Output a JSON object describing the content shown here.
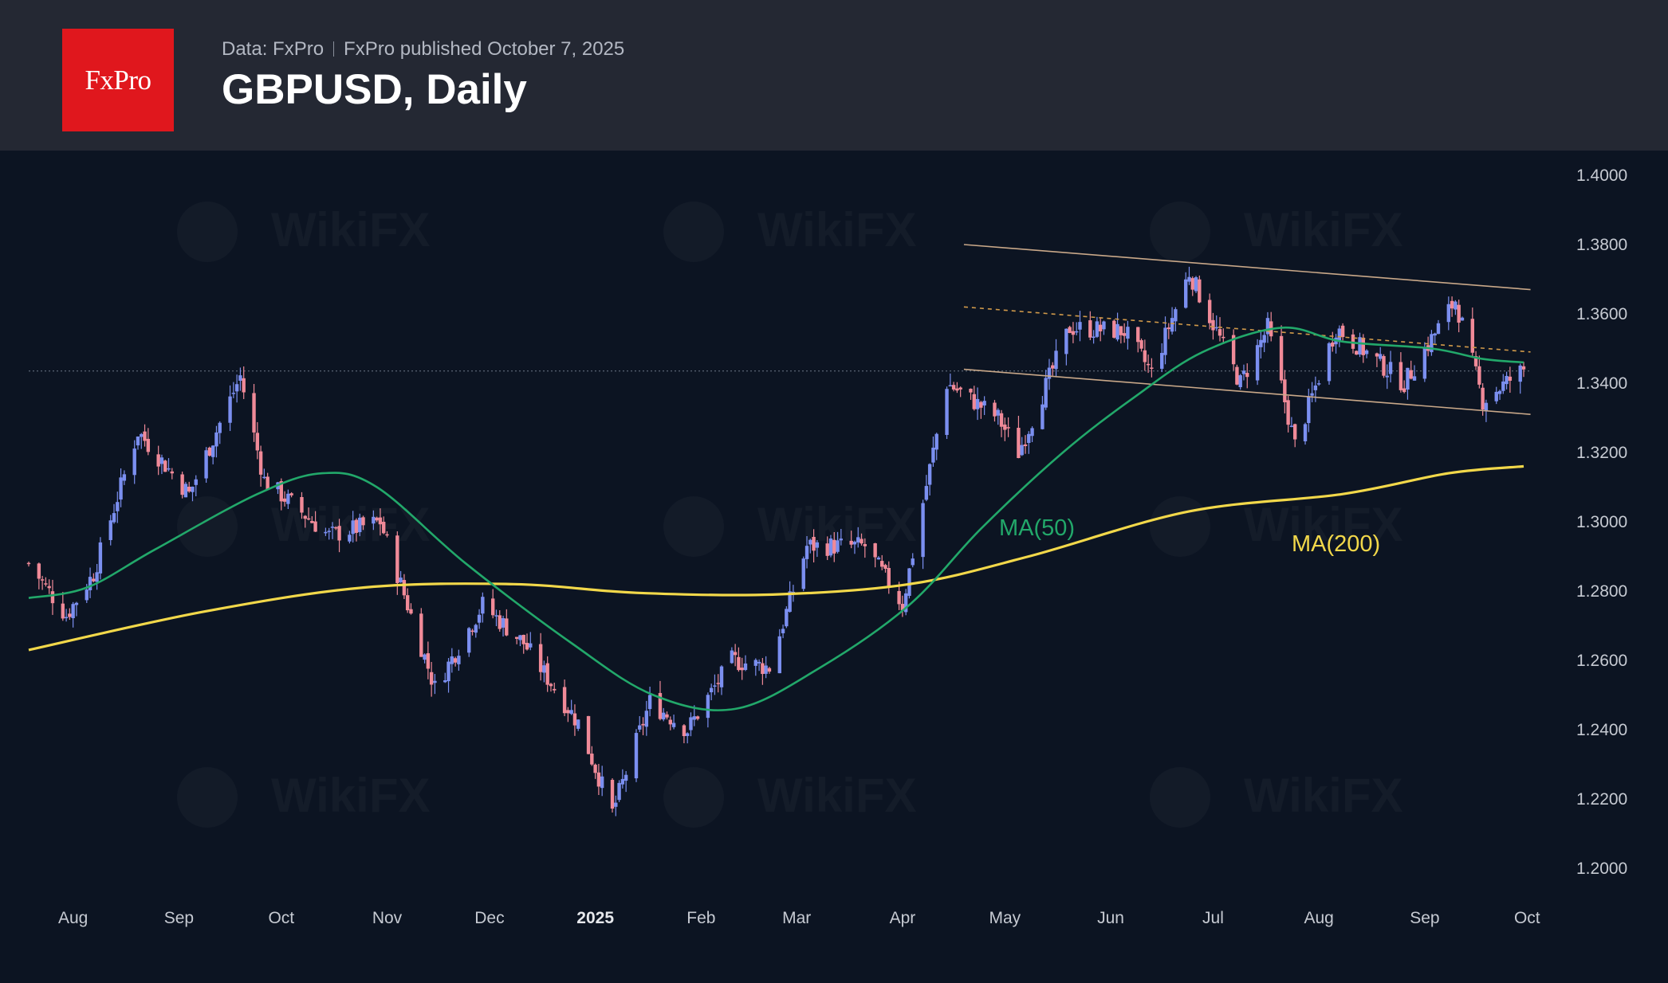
{
  "header": {
    "logo": "FxPro",
    "source": "Data: FxPro",
    "published": "FxPro published October 7, 2025",
    "title": "GBPUSD, Daily"
  },
  "chart_data": {
    "type": "candlestick",
    "instrument": "GBPUSD",
    "timeframe": "Daily",
    "x_tick_labels": [
      {
        "label": "Aug",
        "date": "2024-08-01"
      },
      {
        "label": "Sep",
        "date": "2024-09-01"
      },
      {
        "label": "Oct",
        "date": "2024-10-01"
      },
      {
        "label": "Nov",
        "date": "2024-11-01"
      },
      {
        "label": "Dec",
        "date": "2024-12-01"
      },
      {
        "label": "2025",
        "date": "2025-01-01"
      },
      {
        "label": "Feb",
        "date": "2025-02-01"
      },
      {
        "label": "Mar",
        "date": "2025-03-01"
      },
      {
        "label": "Apr",
        "date": "2025-04-01"
      },
      {
        "label": "May",
        "date": "2025-05-01"
      },
      {
        "label": "Jun",
        "date": "2025-06-01"
      },
      {
        "label": "Jul",
        "date": "2025-07-01"
      },
      {
        "label": "Aug",
        "date": "2025-08-01"
      },
      {
        "label": "Sep",
        "date": "2025-09-01"
      },
      {
        "label": "Oct",
        "date": "2025-10-01"
      }
    ],
    "y_tick_labels": [
      "1.4000",
      "1.3800",
      "1.3600",
      "1.3400",
      "1.3200",
      "1.3000",
      "1.2800",
      "1.2600",
      "1.2400",
      "1.2200",
      "1.2000"
    ],
    "ylim": [
      1.2,
      1.4
    ],
    "x_range": [
      "2024-07-26",
      "2025-10-07"
    ],
    "grid": false,
    "up_color": "#7b8ff0",
    "down_color": "#f08a98",
    "close_anchors": [
      {
        "date": "2024-07-26",
        "close": 1.288
      },
      {
        "date": "2024-08-06",
        "close": 1.273
      },
      {
        "date": "2024-08-14",
        "close": 1.285
      },
      {
        "date": "2024-08-27",
        "close": 1.326
      },
      {
        "date": "2024-09-11",
        "close": 1.308
      },
      {
        "date": "2024-09-26",
        "close": 1.342
      },
      {
        "date": "2024-10-03",
        "close": 1.312
      },
      {
        "date": "2024-10-22",
        "close": 1.296
      },
      {
        "date": "2024-11-06",
        "close": 1.3
      },
      {
        "date": "2024-11-22",
        "close": 1.252
      },
      {
        "date": "2024-12-06",
        "close": 1.276
      },
      {
        "date": "2024-12-18",
        "close": 1.265
      },
      {
        "date": "2025-01-03",
        "close": 1.242
      },
      {
        "date": "2025-01-13",
        "close": 1.216
      },
      {
        "date": "2025-01-24",
        "close": 1.248
      },
      {
        "date": "2025-02-04",
        "close": 1.24
      },
      {
        "date": "2025-02-17",
        "close": 1.26
      },
      {
        "date": "2025-02-28",
        "close": 1.258
      },
      {
        "date": "2025-03-11",
        "close": 1.293
      },
      {
        "date": "2025-03-28",
        "close": 1.293
      },
      {
        "date": "2025-04-08",
        "close": 1.276
      },
      {
        "date": "2025-04-21",
        "close": 1.34
      },
      {
        "date": "2025-05-06",
        "close": 1.33
      },
      {
        "date": "2025-05-12",
        "close": 1.32
      },
      {
        "date": "2025-05-27",
        "close": 1.356
      },
      {
        "date": "2025-06-12",
        "close": 1.355
      },
      {
        "date": "2025-06-20",
        "close": 1.343
      },
      {
        "date": "2025-07-01",
        "close": 1.372
      },
      {
        "date": "2025-07-16",
        "close": 1.34
      },
      {
        "date": "2025-07-24",
        "close": 1.356
      },
      {
        "date": "2025-08-01",
        "close": 1.322
      },
      {
        "date": "2025-08-13",
        "close": 1.356
      },
      {
        "date": "2025-09-02",
        "close": 1.34
      },
      {
        "date": "2025-09-17",
        "close": 1.364
      },
      {
        "date": "2025-09-25",
        "close": 1.335
      },
      {
        "date": "2025-10-07",
        "close": 1.344
      }
    ],
    "overlays": {
      "ma50": {
        "label": "MA(50)",
        "color": "#22a86a",
        "points": [
          {
            "date": "2024-07-26",
            "value": 1.278
          },
          {
            "date": "2024-08-12",
            "value": 1.281
          },
          {
            "date": "2024-09-01",
            "value": 1.292
          },
          {
            "date": "2024-10-01",
            "value": 1.308
          },
          {
            "date": "2024-10-20",
            "value": 1.314
          },
          {
            "date": "2024-11-05",
            "value": 1.31
          },
          {
            "date": "2024-12-01",
            "value": 1.288
          },
          {
            "date": "2025-01-01",
            "value": 1.265
          },
          {
            "date": "2025-01-25",
            "value": 1.25
          },
          {
            "date": "2025-02-18",
            "value": 1.246
          },
          {
            "date": "2025-03-15",
            "value": 1.258
          },
          {
            "date": "2025-04-10",
            "value": 1.276
          },
          {
            "date": "2025-05-01",
            "value": 1.298
          },
          {
            "date": "2025-05-25",
            "value": 1.32
          },
          {
            "date": "2025-06-15",
            "value": 1.336
          },
          {
            "date": "2025-07-05",
            "value": 1.349
          },
          {
            "date": "2025-07-28",
            "value": 1.356
          },
          {
            "date": "2025-08-15",
            "value": 1.352
          },
          {
            "date": "2025-09-10",
            "value": 1.35
          },
          {
            "date": "2025-09-25",
            "value": 1.347
          },
          {
            "date": "2025-10-07",
            "value": 1.346
          }
        ]
      },
      "ma200": {
        "label": "MA(200)",
        "color": "#f2d84a",
        "points": [
          {
            "date": "2024-07-26",
            "value": 1.263
          },
          {
            "date": "2024-09-15",
            "value": 1.274
          },
          {
            "date": "2024-11-01",
            "value": 1.281
          },
          {
            "date": "2024-12-15",
            "value": 1.282
          },
          {
            "date": "2025-01-20",
            "value": 1.2795
          },
          {
            "date": "2025-03-01",
            "value": 1.279
          },
          {
            "date": "2025-04-10",
            "value": 1.282
          },
          {
            "date": "2025-05-15",
            "value": 1.29
          },
          {
            "date": "2025-07-01",
            "value": 1.303
          },
          {
            "date": "2025-08-15",
            "value": 1.308
          },
          {
            "date": "2025-09-15",
            "value": 1.314
          },
          {
            "date": "2025-10-07",
            "value": 1.316
          }
        ]
      },
      "channel_upper": {
        "color": "#c9a889",
        "dash": false,
        "points": [
          {
            "date": "2025-04-26",
            "value": 1.38
          },
          {
            "date": "2025-10-09",
            "value": 1.367
          }
        ]
      },
      "channel_mid": {
        "color": "#d19a4a",
        "dash": true,
        "points": [
          {
            "date": "2025-04-26",
            "value": 1.362
          },
          {
            "date": "2025-10-09",
            "value": 1.349
          }
        ]
      },
      "channel_lower": {
        "color": "#c9a889",
        "dash": false,
        "points": [
          {
            "date": "2025-04-26",
            "value": 1.344
          },
          {
            "date": "2025-10-09",
            "value": 1.331
          }
        ]
      },
      "horizontal": {
        "color": "#6c7888",
        "dash": true,
        "value": 1.3435,
        "from": "2024-07-26",
        "to": "2025-10-09"
      }
    }
  },
  "watermark": "WikiFX"
}
